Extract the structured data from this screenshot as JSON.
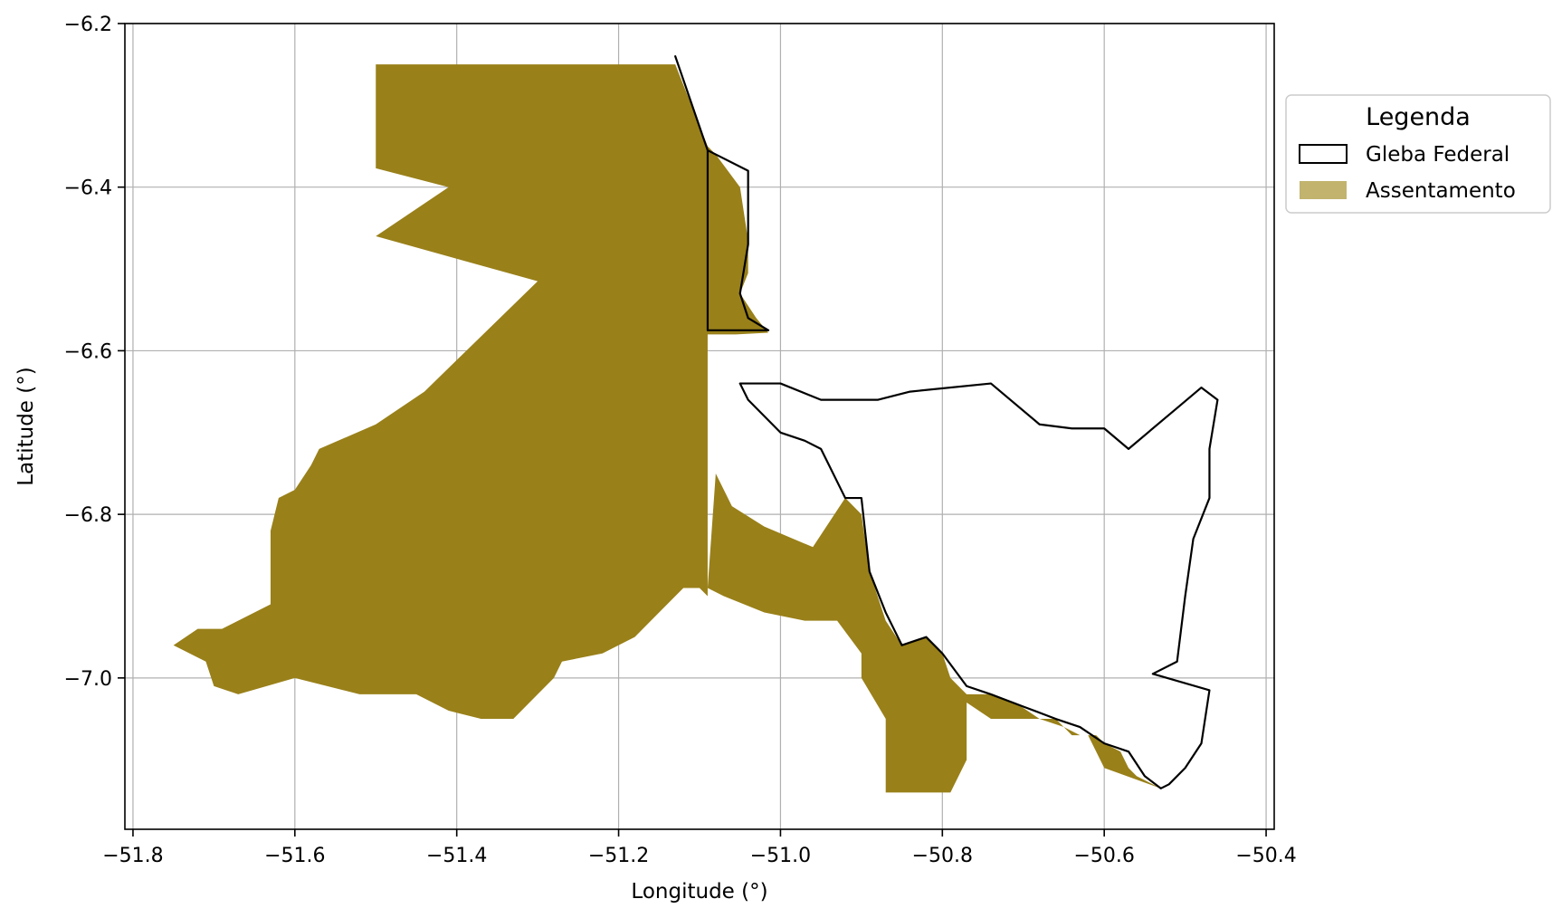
{
  "axes": {
    "xlabel": "Longitude (°)",
    "ylabel": "Latitude (°)",
    "xlim": [
      -51.81,
      -50.39
    ],
    "ylim": [
      -7.185,
      -6.2
    ],
    "xticks": [
      -51.8,
      -51.6,
      -51.4,
      -51.2,
      -51.0,
      -50.8,
      -50.6,
      -50.4
    ],
    "yticks": [
      -6.2,
      -6.4,
      -6.6,
      -6.8,
      -7.0
    ],
    "xtick_labels": [
      "−51.8",
      "−51.6",
      "−51.4",
      "−51.2",
      "−51.0",
      "−50.8",
      "−50.6",
      "−50.4"
    ],
    "ytick_labels": [
      "−6.2",
      "−6.4",
      "−6.6",
      "−6.8",
      "−7.0"
    ],
    "grid": true
  },
  "legend": {
    "title": "Legenda",
    "placement": "outside-right-top",
    "items": [
      {
        "label": "Gleba Federal",
        "style": "outline",
        "color": "#000000"
      },
      {
        "label": "Assentamento",
        "style": "fill",
        "color": "#c2b36e"
      }
    ]
  },
  "colors": {
    "assentamento": "#998019",
    "gleba_outline": "#000000",
    "grid": "#b0b0b0"
  },
  "map_layers": {
    "assentamento_polygons": [
      [
        [
          -51.5,
          -6.25
        ],
        [
          -51.34,
          -6.25
        ],
        [
          -51.17,
          -6.25
        ],
        [
          -51.13,
          -6.25
        ],
        [
          -51.09,
          -6.35
        ],
        [
          -51.08,
          -6.36
        ],
        [
          -51.05,
          -6.4
        ],
        [
          -51.04,
          -6.465
        ],
        [
          -51.04,
          -6.505
        ],
        [
          -51.05,
          -6.53
        ],
        [
          -51.03,
          -6.56
        ],
        [
          -51.015,
          -6.578
        ],
        [
          -51.055,
          -6.58
        ],
        [
          -51.09,
          -6.58
        ],
        [
          -51.09,
          -6.76
        ],
        [
          -51.09,
          -6.9
        ],
        [
          -51.1,
          -6.89
        ],
        [
          -51.12,
          -6.89
        ],
        [
          -51.15,
          -6.92
        ],
        [
          -51.18,
          -6.95
        ],
        [
          -51.22,
          -6.97
        ],
        [
          -51.27,
          -6.98
        ],
        [
          -51.28,
          -7.0
        ],
        [
          -51.3,
          -7.02
        ],
        [
          -51.33,
          -7.05
        ],
        [
          -51.37,
          -7.05
        ],
        [
          -51.41,
          -7.04
        ],
        [
          -51.45,
          -7.02
        ],
        [
          -51.52,
          -7.02
        ],
        [
          -51.6,
          -7.0
        ],
        [
          -51.67,
          -7.02
        ],
        [
          -51.7,
          -7.01
        ],
        [
          -51.71,
          -6.98
        ],
        [
          -51.75,
          -6.96
        ],
        [
          -51.72,
          -6.94
        ],
        [
          -51.69,
          -6.94
        ],
        [
          -51.63,
          -6.91
        ],
        [
          -51.63,
          -6.86
        ],
        [
          -51.63,
          -6.82
        ],
        [
          -51.62,
          -6.78
        ],
        [
          -51.6,
          -6.77
        ],
        [
          -51.58,
          -6.74
        ],
        [
          -51.57,
          -6.72
        ],
        [
          -51.5,
          -6.69
        ],
        [
          -51.44,
          -6.65
        ],
        [
          -51.3,
          -6.515
        ],
        [
          -51.5,
          -6.46
        ],
        [
          -51.41,
          -6.4
        ],
        [
          -51.5,
          -6.377
        ]
      ],
      [
        [
          -51.08,
          -6.75
        ],
        [
          -51.06,
          -6.79
        ],
        [
          -51.02,
          -6.815
        ],
        [
          -50.96,
          -6.84
        ],
        [
          -50.92,
          -6.78
        ],
        [
          -50.9,
          -6.8
        ],
        [
          -50.89,
          -6.87
        ],
        [
          -50.87,
          -6.93
        ],
        [
          -50.85,
          -6.96
        ],
        [
          -50.82,
          -6.95
        ],
        [
          -50.8,
          -6.97
        ],
        [
          -50.79,
          -7.0
        ],
        [
          -50.77,
          -7.02
        ],
        [
          -50.74,
          -7.02
        ],
        [
          -50.71,
          -7.03
        ],
        [
          -50.68,
          -7.05
        ],
        [
          -50.65,
          -7.06
        ],
        [
          -50.63,
          -7.07
        ],
        [
          -50.61,
          -7.07
        ],
        [
          -50.6,
          -7.08
        ],
        [
          -50.58,
          -7.09
        ],
        [
          -50.57,
          -7.11
        ],
        [
          -50.56,
          -7.12
        ],
        [
          -50.53,
          -7.135
        ],
        [
          -50.6,
          -7.11
        ],
        [
          -50.62,
          -7.07
        ],
        [
          -50.64,
          -7.07
        ],
        [
          -50.66,
          -7.05
        ],
        [
          -50.7,
          -7.05
        ],
        [
          -50.74,
          -7.05
        ],
        [
          -50.77,
          -7.03
        ],
        [
          -50.77,
          -7.1
        ],
        [
          -50.79,
          -7.14
        ],
        [
          -50.82,
          -7.14
        ],
        [
          -50.87,
          -7.14
        ],
        [
          -50.87,
          -7.05
        ],
        [
          -50.9,
          -7.0
        ],
        [
          -50.9,
          -6.97
        ],
        [
          -50.93,
          -6.93
        ],
        [
          -50.97,
          -6.93
        ],
        [
          -51.02,
          -6.92
        ],
        [
          -51.07,
          -6.9
        ],
        [
          -51.09,
          -6.89
        ]
      ]
    ],
    "gleba_outlines": [
      [
        [
          -51.13,
          -6.24
        ],
        [
          -51.09,
          -6.355
        ],
        [
          -51.04,
          -6.38
        ],
        [
          -51.04,
          -6.47
        ],
        [
          -51.045,
          -6.5
        ],
        [
          -51.05,
          -6.53
        ],
        [
          -51.04,
          -6.56
        ],
        [
          -51.015,
          -6.575
        ],
        [
          -51.09,
          -6.575
        ],
        [
          -51.09,
          -6.355
        ]
      ],
      [
        [
          -51.05,
          -6.64
        ],
        [
          -51.0,
          -6.64
        ],
        [
          -50.95,
          -6.66
        ],
        [
          -50.92,
          -6.66
        ],
        [
          -50.88,
          -6.66
        ],
        [
          -50.84,
          -6.65
        ],
        [
          -50.74,
          -6.64
        ],
        [
          -50.68,
          -6.69
        ],
        [
          -50.64,
          -6.695
        ],
        [
          -50.6,
          -6.695
        ],
        [
          -50.57,
          -6.72
        ],
        [
          -50.51,
          -6.67
        ],
        [
          -50.48,
          -6.645
        ],
        [
          -50.46,
          -6.66
        ],
        [
          -50.47,
          -6.72
        ],
        [
          -50.47,
          -6.78
        ],
        [
          -50.49,
          -6.83
        ],
        [
          -50.5,
          -6.9
        ],
        [
          -50.51,
          -6.98
        ],
        [
          -50.54,
          -6.995
        ],
        [
          -50.47,
          -7.015
        ],
        [
          -50.48,
          -7.08
        ],
        [
          -50.5,
          -7.11
        ],
        [
          -50.52,
          -7.13
        ],
        [
          -50.53,
          -7.135
        ],
        [
          -50.55,
          -7.12
        ],
        [
          -50.57,
          -7.09
        ],
        [
          -50.6,
          -7.08
        ],
        [
          -50.63,
          -7.06
        ],
        [
          -50.66,
          -7.05
        ],
        [
          -50.7,
          -7.035
        ],
        [
          -50.74,
          -7.02
        ],
        [
          -50.77,
          -7.01
        ],
        [
          -50.8,
          -6.97
        ],
        [
          -50.82,
          -6.95
        ],
        [
          -50.85,
          -6.96
        ],
        [
          -50.87,
          -6.92
        ],
        [
          -50.89,
          -6.87
        ],
        [
          -50.9,
          -6.78
        ],
        [
          -50.92,
          -6.78
        ],
        [
          -50.95,
          -6.72
        ],
        [
          -50.97,
          -6.71
        ],
        [
          -51.0,
          -6.7
        ],
        [
          -51.04,
          -6.66
        ]
      ]
    ]
  }
}
